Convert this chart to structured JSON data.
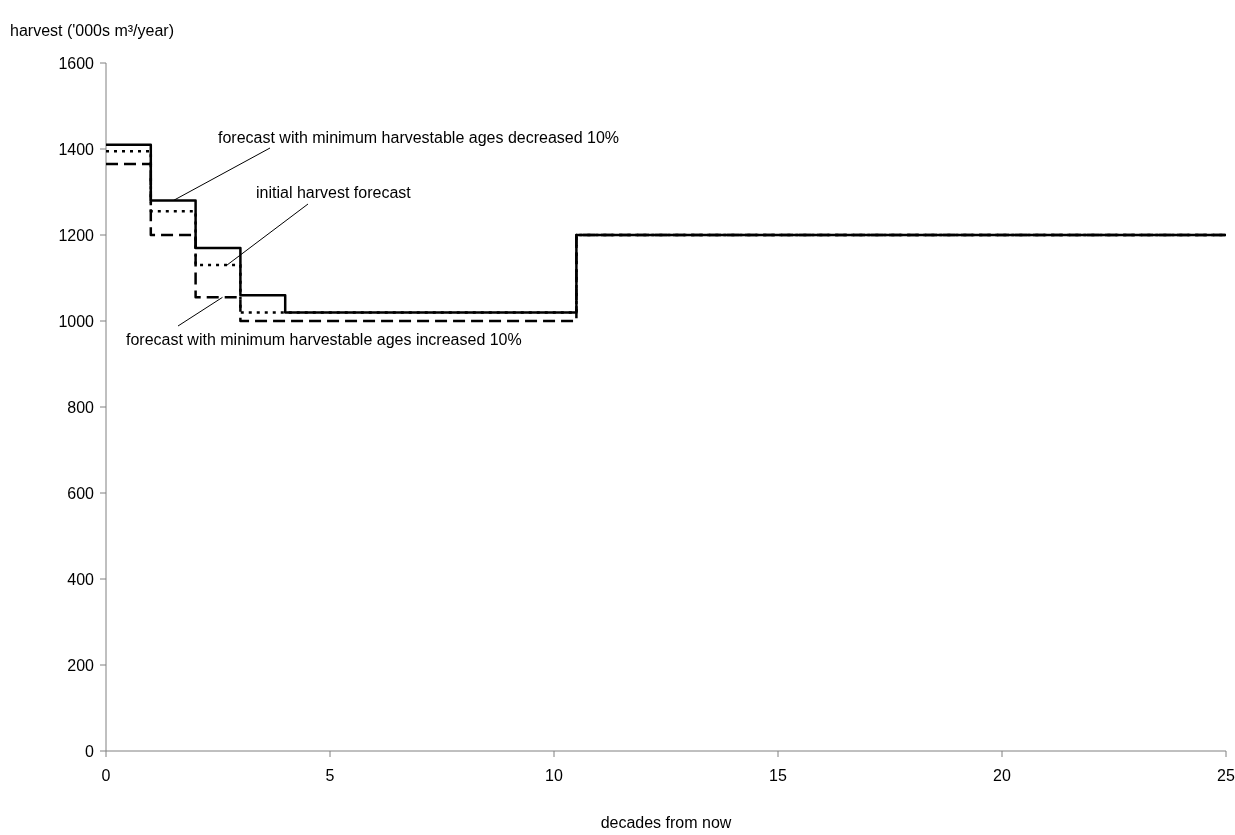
{
  "chart_data": {
    "type": "step",
    "xlabel": "decades from now",
    "ylabel": "harvest ('000s m³/year)",
    "xlim": [
      0,
      25
    ],
    "xticks": [
      0,
      5,
      10,
      15,
      20,
      25
    ],
    "ylim": [
      0,
      1600
    ],
    "yticks": [
      0,
      200,
      400,
      600,
      800,
      1000,
      1200,
      1400,
      1600
    ],
    "grid": false,
    "series": [
      {
        "color": "#000000",
        "line_style": "solid",
        "x": [
          0,
          1,
          2,
          3,
          4,
          10.5,
          25
        ],
        "values": [
          1410,
          1280,
          1170,
          1060,
          1020,
          1200,
          1200
        ]
      },
      {
        "color": "#000000",
        "line_style": "dotted",
        "x": [
          0,
          1,
          2,
          3,
          10.5,
          25
        ],
        "values": [
          1395,
          1255,
          1130,
          1020,
          1200,
          1200
        ]
      },
      {
        "color": "#000000",
        "line_style": "dashed",
        "x": [
          0,
          1,
          2,
          3,
          10.5,
          25
        ],
        "values": [
          1365,
          1200,
          1055,
          1000,
          1200,
          1200
        ]
      }
    ],
    "annotations": [
      {
        "text": "forecast with minimum harvestable ages decreased 10%",
        "x": 1.5,
        "y": 1280
      },
      {
        "text": "initial harvest forecast",
        "x": 2.7,
        "y": 1130
      },
      {
        "text": "forecast with minimum harvestable ages increased 10%",
        "x": 2.6,
        "y": 1055
      }
    ]
  }
}
